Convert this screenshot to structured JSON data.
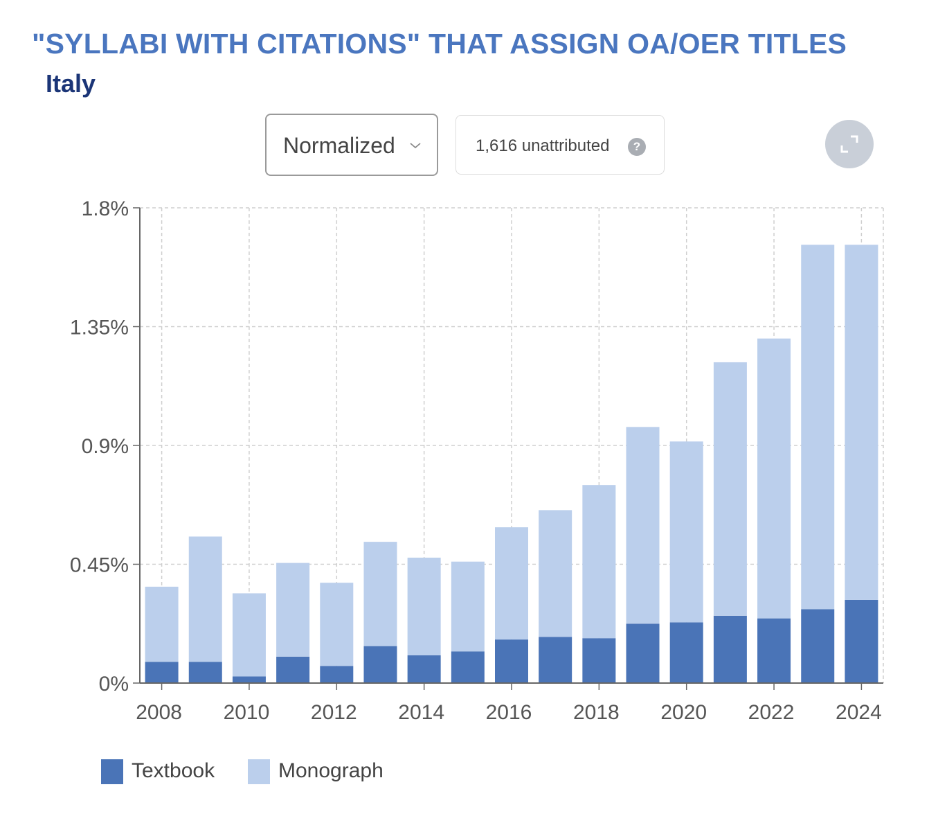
{
  "title": "\"SYLLABI WITH CITATIONS\" THAT ASSIGN OA/OER TITLES",
  "subtitle": "Italy",
  "controls": {
    "mode_select": "Normalized",
    "unattributed_label": "1,616 unattributed",
    "help_glyph": "?"
  },
  "colors": {
    "textbook": "#4a74b7",
    "monograph": "#bbcfec",
    "title": "#4a76bf",
    "subtitle": "#1b3577"
  },
  "chart_data": {
    "type": "bar",
    "stacked": true,
    "title": "\"SYLLABI WITH CITATIONS\" THAT ASSIGN OA/OER TITLES",
    "subtitle": "Italy",
    "xlabel": "",
    "ylabel": "",
    "categories": [
      "2008",
      "2009",
      "2010",
      "2011",
      "2012",
      "2013",
      "2014",
      "2015",
      "2016",
      "2017",
      "2018",
      "2019",
      "2020",
      "2021",
      "2022",
      "2023",
      "2024"
    ],
    "x_tick_labels": [
      "2008",
      "2010",
      "2012",
      "2014",
      "2016",
      "2018",
      "2020",
      "2022",
      "2024"
    ],
    "y_tick_labels": [
      "0%",
      "0.45%",
      "0.9%",
      "1.35%",
      "1.8%"
    ],
    "y_ticks": [
      0,
      0.45,
      0.9,
      1.35,
      1.8
    ],
    "ylim": [
      0,
      1.8
    ],
    "unit": "%",
    "grid": true,
    "legend_position": "bottom-left",
    "series": [
      {
        "name": "Textbook",
        "color": "#4a74b7",
        "values": [
          0.08,
          0.08,
          0.025,
          0.1,
          0.065,
          0.14,
          0.105,
          0.12,
          0.165,
          0.175,
          0.17,
          0.225,
          0.23,
          0.255,
          0.245,
          0.28,
          0.315
        ]
      },
      {
        "name": "Monograph",
        "color": "#bbcfec",
        "values": [
          0.285,
          0.475,
          0.315,
          0.355,
          0.315,
          0.395,
          0.37,
          0.34,
          0.425,
          0.48,
          0.58,
          0.745,
          0.685,
          0.96,
          1.06,
          1.38,
          1.345
        ]
      }
    ]
  }
}
